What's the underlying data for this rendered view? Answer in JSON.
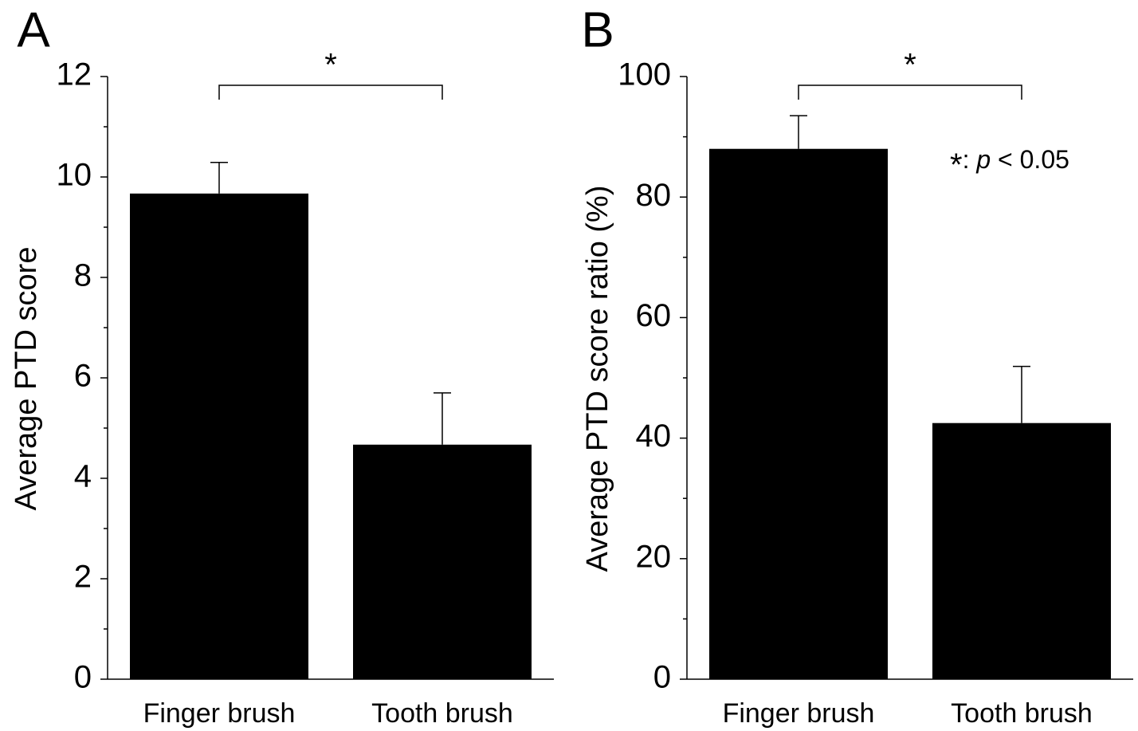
{
  "chart_data": [
    {
      "type": "bar",
      "panel_label": "A",
      "ylabel": "Average PTD score",
      "categories": [
        "Finger brush",
        "Tooth brush"
      ],
      "values": [
        9.67,
        4.67
      ],
      "errors": [
        0.62,
        1.03
      ],
      "color": "#000000",
      "ylim": [
        0,
        12
      ],
      "yticks": [
        0,
        2,
        4,
        6,
        8,
        10,
        12
      ],
      "yminor_ticks": [
        1,
        3,
        5,
        7,
        9,
        11
      ],
      "significance": "*"
    },
    {
      "type": "bar",
      "panel_label": "B",
      "ylabel": "Average PTD score ratio (%)",
      "categories": [
        "Finger brush",
        "Tooth brush"
      ],
      "values": [
        88,
        42.5
      ],
      "errors": [
        5.5,
        9.4
      ],
      "color": "#000000",
      "ylim": [
        0,
        100
      ],
      "yticks": [
        0,
        20,
        40,
        60,
        80,
        100
      ],
      "yminor_ticks": [
        10,
        30,
        50,
        70,
        90
      ],
      "significance": "*",
      "note": [
        "*",
        ": ",
        "p",
        " < 0.05"
      ]
    }
  ]
}
